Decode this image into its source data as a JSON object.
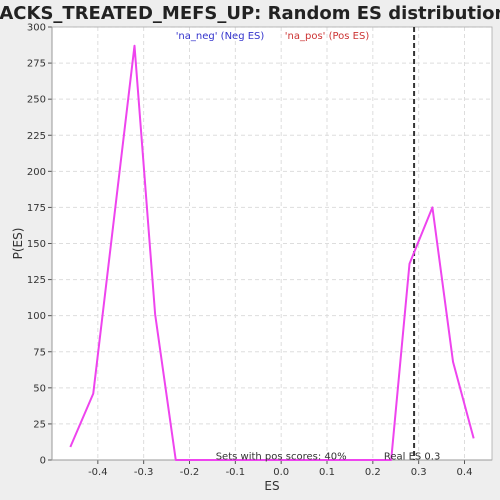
{
  "chart_data": {
    "type": "line",
    "title": "JACKS_TREATED_MEFS_UP: Random ES distribution",
    "xlabel": "ES",
    "ylabel": "P(ES)",
    "xlim": [
      -0.5,
      0.46
    ],
    "ylim": [
      0,
      300
    ],
    "x_ticks": [
      -0.4,
      -0.3,
      -0.2,
      -0.1,
      0.0,
      0.1,
      0.2,
      0.3,
      0.4
    ],
    "x_tick_labels": [
      "-0.4",
      "-0.3",
      "-0.2",
      "-0.1",
      "0.0",
      "0.1",
      "0.2",
      "0.3",
      "0.4"
    ],
    "y_ticks": [
      0,
      25,
      50,
      75,
      100,
      125,
      150,
      175,
      200,
      225,
      250,
      275,
      300
    ],
    "y_tick_labels": [
      "0",
      "25",
      "50",
      "75",
      "100",
      "125",
      "150",
      "175",
      "200",
      "225",
      "250",
      "275",
      "300"
    ],
    "grid": true,
    "series": [
      {
        "color": "#ee44ee",
        "x": [
          -0.46,
          -0.41,
          -0.32,
          -0.275,
          -0.23,
          0.0,
          0.24,
          0.28,
          0.33,
          0.375,
          0.42
        ],
        "y": [
          9,
          46,
          287,
          101,
          0,
          0,
          0,
          136,
          175,
          68,
          15
        ]
      }
    ],
    "legend": {
      "placement": "top-center",
      "entries": [
        {
          "label": "'na_neg' (Neg ES)",
          "color": "#3333cc"
        },
        {
          "label": "'na_pos' (Pos ES)",
          "color": "#cc3333"
        }
      ]
    },
    "vline": {
      "x": 0.29,
      "style": "dashed",
      "color": "#333333"
    },
    "annotations": {
      "pos_scores": "Sets with pos scores: 40%",
      "real_es": "Real ES 0.3"
    }
  }
}
